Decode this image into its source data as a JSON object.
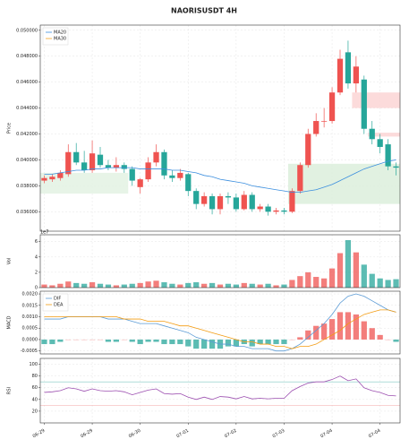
{
  "chart_data": [
    {
      "type": "candlestick",
      "title": "NAORISUSDT  4H",
      "ylabel": "Price",
      "categories": [
        "06-29",
        null,
        null,
        null,
        null,
        null,
        "06-29",
        null,
        null,
        null,
        null,
        null,
        "06-30",
        null,
        null,
        null,
        null,
        null,
        "07-01",
        null,
        null,
        null,
        null,
        null,
        "07-02",
        null,
        null,
        null,
        null,
        null,
        "07-03",
        null,
        null,
        null,
        null,
        null,
        "07-04",
        null,
        null,
        null,
        null,
        null,
        "07-04",
        null,
        null
      ],
      "open": [
        0.0384,
        0.0385,
        0.0386,
        0.0389,
        0.0406,
        0.0398,
        0.0392,
        0.0404,
        0.0396,
        0.0394,
        0.0396,
        0.0393,
        0.0379,
        0.0385,
        0.0398,
        0.0406,
        0.0388,
        0.0386,
        0.0389,
        0.0376,
        0.0366,
        0.0372,
        0.0362,
        0.0372,
        0.0371,
        0.0362,
        0.0373,
        0.0362,
        0.0364,
        0.036,
        0.0361,
        0.036,
        0.0376,
        0.0396,
        0.042,
        0.043,
        0.043,
        0.0452,
        0.0483,
        0.0459,
        0.0462,
        0.0424,
        0.0416,
        0.0412,
        0.0395
      ],
      "high": [
        0.0388,
        0.0389,
        0.0392,
        0.0412,
        0.0413,
        0.0407,
        0.0415,
        0.041,
        0.04,
        0.0402,
        0.0398,
        0.0395,
        0.0386,
        0.0402,
        0.0412,
        0.0408,
        0.0392,
        0.0393,
        0.039,
        0.0378,
        0.0375,
        0.0374,
        0.0374,
        0.0375,
        0.0374,
        0.0376,
        0.0375,
        0.0366,
        0.0366,
        0.0363,
        0.0363,
        0.0378,
        0.0398,
        0.0424,
        0.0436,
        0.044,
        0.0456,
        0.0485,
        0.0492,
        0.048,
        0.0465,
        0.043,
        0.042,
        0.0416,
        0.0398
      ],
      "low": [
        0.0382,
        0.0383,
        0.0384,
        0.0387,
        0.0396,
        0.039,
        0.039,
        0.0394,
        0.0392,
        0.0391,
        0.039,
        0.038,
        0.0374,
        0.0383,
        0.0395,
        0.0385,
        0.0383,
        0.0384,
        0.0372,
        0.0362,
        0.0364,
        0.0358,
        0.0358,
        0.0366,
        0.036,
        0.0361,
        0.036,
        0.036,
        0.0357,
        0.0358,
        0.0358,
        0.0359,
        0.0374,
        0.0394,
        0.0418,
        0.0425,
        0.0428,
        0.045,
        0.0455,
        0.0452,
        0.042,
        0.0412,
        0.0405,
        0.0392,
        0.0388
      ],
      "close": [
        0.0386,
        0.0387,
        0.039,
        0.0406,
        0.0398,
        0.0392,
        0.0405,
        0.0396,
        0.0394,
        0.0396,
        0.0393,
        0.0384,
        0.0385,
        0.0398,
        0.0406,
        0.0388,
        0.0386,
        0.039,
        0.0376,
        0.0366,
        0.0372,
        0.0362,
        0.0372,
        0.0371,
        0.0362,
        0.0373,
        0.0362,
        0.0364,
        0.036,
        0.0361,
        0.036,
        0.0376,
        0.0396,
        0.042,
        0.043,
        0.043,
        0.0452,
        0.0478,
        0.0459,
        0.0472,
        0.0424,
        0.0416,
        0.041,
        0.0395,
        0.0394
      ],
      "up_color": "#ef5350",
      "down_color": "#26a69a",
      "series": [
        {
          "name": "MA20",
          "color": "#3b8ede",
          "values": [
            0.0389,
            0.0389,
            0.039,
            0.0391,
            0.0392,
            0.0392,
            0.0393,
            0.0393,
            0.0394,
            0.0394,
            0.0394,
            0.0394,
            0.0393,
            0.0393,
            0.0393,
            0.0393,
            0.0392,
            0.0392,
            0.0391,
            0.039,
            0.0388,
            0.0387,
            0.0385,
            0.0384,
            0.0383,
            0.0382,
            0.038,
            0.0379,
            0.0378,
            0.0377,
            0.0376,
            0.0375,
            0.0375,
            0.0376,
            0.0377,
            0.0379,
            0.0381,
            0.0384,
            0.0387,
            0.039,
            0.0393,
            0.0395,
            0.0397,
            0.0399,
            0.04
          ]
        },
        {
          "name": "MA30",
          "color": "#f5a623",
          "values": [
            null,
            null,
            null,
            null,
            null,
            null,
            null,
            null,
            null,
            null,
            null,
            null,
            null,
            null,
            null,
            null,
            null,
            null,
            null,
            null,
            null,
            null,
            null,
            null,
            null,
            null,
            null,
            null,
            null,
            null,
            null,
            null,
            null,
            null,
            null,
            null,
            null,
            null,
            null,
            null,
            null,
            null,
            null,
            null,
            null
          ]
        }
      ],
      "zones": [
        {
          "start": 0,
          "end": 11,
          "ylim": [
            0.0374,
            0.039
          ],
          "color": "#e3f2e3"
        },
        {
          "start": 31,
          "end": 45,
          "ylim": [
            0.0366,
            0.0397
          ],
          "color": "#dcefdc"
        },
        {
          "start": 39,
          "end": 45,
          "ylim": [
            0.044,
            0.0452
          ],
          "color": "#fbd5d5"
        },
        {
          "start": 41,
          "end": 45,
          "ylim": [
            0.0418,
            0.0421
          ],
          "color": "#fbd5d5"
        }
      ],
      "ylim": [
        0.0345,
        0.0504
      ],
      "yticks": [
        {
          "value": 0.036,
          "label": "0.036000"
        },
        {
          "value": 0.038,
          "label": "0.038000"
        },
        {
          "value": 0.04,
          "label": "0.040000"
        },
        {
          "value": 0.042,
          "label": "0.042000"
        },
        {
          "value": 0.044,
          "label": "0.044000"
        },
        {
          "value": 0.046,
          "label": "0.046000"
        },
        {
          "value": 0.048,
          "label": "0.048000"
        },
        {
          "value": 0.05,
          "label": "0.050000"
        }
      ],
      "grid": true
    },
    {
      "type": "volume",
      "ylabel": "Vol",
      "offset_label": "1e7",
      "values": [
        0.4,
        0.3,
        0.5,
        0.8,
        0.6,
        0.5,
        0.7,
        0.5,
        0.4,
        0.3,
        0.4,
        0.5,
        0.6,
        0.8,
        0.9,
        0.7,
        0.5,
        0.4,
        0.6,
        0.7,
        0.5,
        0.6,
        0.4,
        0.5,
        0.4,
        0.6,
        0.5,
        0.4,
        0.5,
        0.3,
        0.4,
        1.0,
        1.5,
        2.0,
        1.4,
        1.2,
        2.5,
        4.5,
        6.2,
        4.6,
        3.0,
        1.8,
        1.2,
        1.0,
        1.1
      ],
      "ylim": [
        0,
        6.9
      ],
      "yticks": [
        0,
        2,
        4,
        6
      ],
      "grid": true
    },
    {
      "type": "macd",
      "ylabel": "MACD",
      "series": [
        {
          "name": "DIF",
          "color": "#5b9bd5",
          "values": [
            0.0009,
            0.0009,
            0.0009,
            0.001,
            0.001,
            0.001,
            0.001,
            0.001,
            0.0009,
            0.0009,
            0.0009,
            0.0008,
            0.0007,
            0.0007,
            0.0007,
            0.0006,
            0.0005,
            0.0004,
            0.0003,
            0.0001,
            0.0,
            -0.0001,
            -0.0002,
            -0.0002,
            -0.0003,
            -0.0003,
            -0.0004,
            -0.0004,
            -0.0004,
            -0.0005,
            -0.0005,
            -0.0004,
            -0.0002,
            0.0001,
            0.0004,
            0.0007,
            0.0011,
            0.0016,
            0.0019,
            0.002,
            0.0019,
            0.0017,
            0.0015,
            0.0013,
            0.0012
          ]
        },
        {
          "name": "DEA",
          "color": "#f39c12",
          "values": [
            0.001,
            0.001,
            0.001,
            0.001,
            0.001,
            0.001,
            0.001,
            0.001,
            0.001,
            0.001,
            0.0009,
            0.0009,
            0.0009,
            0.0008,
            0.0008,
            0.0008,
            0.0007,
            0.0006,
            0.0006,
            0.0005,
            0.0004,
            0.0003,
            0.0002,
            0.0001,
            0.0,
            -0.0001,
            -0.0001,
            -0.0002,
            -0.0002,
            -0.0003,
            -0.0003,
            -0.0004,
            -0.0003,
            -0.0003,
            -0.0002,
            0.0,
            0.0002,
            0.0004,
            0.0007,
            0.0009,
            0.0011,
            0.0012,
            0.0013,
            0.0013,
            0.0012
          ]
        }
      ],
      "histogram": [
        -0.0002,
        -0.0002,
        -0.0001,
        0.0,
        0.0,
        0.0,
        0.0,
        0.0,
        -0.0001,
        -0.0001,
        0.0,
        -0.0001,
        -0.0002,
        -0.0001,
        -0.0001,
        -0.0002,
        -0.0002,
        -0.0002,
        -0.0003,
        -0.0004,
        -0.0004,
        -0.0004,
        -0.0004,
        -0.0003,
        -0.0003,
        -0.0002,
        -0.0003,
        -0.0002,
        -0.0002,
        -0.0002,
        -0.0002,
        0.0,
        0.0001,
        0.0004,
        0.0006,
        0.0007,
        0.0009,
        0.0012,
        0.0012,
        0.0011,
        0.0008,
        0.0005,
        0.0002,
        0.0,
        -0.0001
      ],
      "ylim": [
        -0.00063,
        0.00212
      ],
      "yticks": [
        {
          "value": -0.0005,
          "label": "-0.0005"
        },
        {
          "value": 0,
          "label": "0.0000"
        },
        {
          "value": 0.0005,
          "label": "0.0005"
        },
        {
          "value": 0.001,
          "label": "0.0010"
        },
        {
          "value": 0.0015,
          "label": "0.0015"
        },
        {
          "value": 0.002,
          "label": "0.0020"
        }
      ],
      "grid": true
    },
    {
      "type": "line",
      "ylabel": "RSI",
      "series": [
        {
          "color": "#9c4fb0",
          "values": [
            52,
            53,
            55,
            60,
            58,
            54,
            58,
            55,
            54,
            55,
            53,
            48,
            52,
            56,
            58,
            50,
            49,
            50,
            44,
            40,
            44,
            40,
            45,
            44,
            41,
            45,
            41,
            42,
            41,
            42,
            42,
            55,
            62,
            68,
            70,
            70,
            74,
            80,
            72,
            75,
            60,
            55,
            52,
            47,
            46
          ]
        }
      ],
      "hlines": [
        {
          "value": 70,
          "color": "#7fc8c0"
        },
        {
          "value": 30,
          "color": "#f3a6a6"
        }
      ],
      "ylim": [
        0,
        110
      ],
      "yticks": [
        20,
        40,
        60,
        80,
        100
      ],
      "grid": true
    }
  ]
}
